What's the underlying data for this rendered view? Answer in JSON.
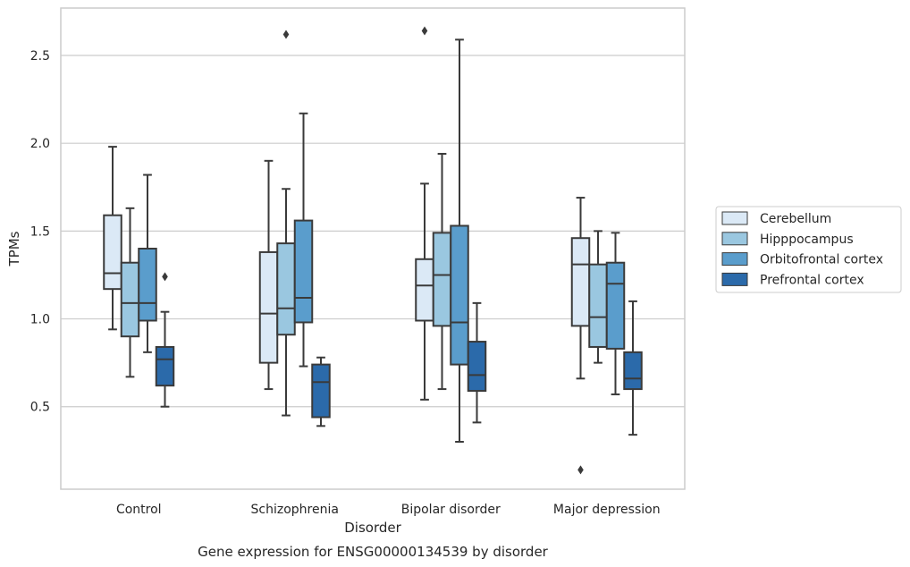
{
  "chart_data": {
    "type": "box",
    "title": "Gene expression for ENSG00000134539 by disorder",
    "xlabel": "Disorder",
    "ylabel": "TPMs",
    "categories": [
      "Control",
      "Schizophrenia",
      "Bipolar disorder",
      "Major depression"
    ],
    "ylim": [
      0.03,
      2.77
    ],
    "yticks": [
      0.5,
      1.0,
      1.5,
      2.0,
      2.5
    ],
    "ytick_labels": [
      "0.5",
      "1.0",
      "1.5",
      "2.0",
      "2.5"
    ],
    "grid": "horizontal",
    "legend_position": "right",
    "series": [
      {
        "name": "Cerebellum",
        "color": "#dbe9f6",
        "boxes": [
          {
            "category": "Control",
            "whislo": 0.94,
            "q1": 1.17,
            "med": 1.26,
            "q3": 1.59,
            "whishi": 1.98,
            "fliers": []
          },
          {
            "category": "Schizophrenia",
            "whislo": 0.6,
            "q1": 0.75,
            "med": 1.03,
            "q3": 1.38,
            "whishi": 1.9,
            "fliers": []
          },
          {
            "category": "Bipolar disorder",
            "whislo": 0.54,
            "q1": 0.99,
            "med": 1.19,
            "q3": 1.34,
            "whishi": 1.77,
            "fliers": [
              2.64
            ]
          },
          {
            "category": "Major depression",
            "whislo": 0.66,
            "q1": 0.96,
            "med": 1.31,
            "q3": 1.46,
            "whishi": 1.69,
            "fliers": [
              0.14
            ]
          }
        ]
      },
      {
        "name": "Hipppocampus",
        "color": "#9ac7e0",
        "boxes": [
          {
            "category": "Control",
            "whislo": 0.67,
            "q1": 0.9,
            "med": 1.09,
            "q3": 1.32,
            "whishi": 1.63,
            "fliers": []
          },
          {
            "category": "Schizophrenia",
            "whislo": 0.45,
            "q1": 0.91,
            "med": 1.06,
            "q3": 1.43,
            "whishi": 1.74,
            "fliers": [
              2.62
            ]
          },
          {
            "category": "Bipolar disorder",
            "whislo": 0.6,
            "q1": 0.96,
            "med": 1.25,
            "q3": 1.49,
            "whishi": 1.94,
            "fliers": []
          },
          {
            "category": "Major depression",
            "whislo": 0.75,
            "q1": 0.84,
            "med": 1.01,
            "q3": 1.31,
            "whishi": 1.5,
            "fliers": []
          }
        ]
      },
      {
        "name": "Orbitofrontal cortex",
        "color": "#5a9dcc",
        "boxes": [
          {
            "category": "Control",
            "whislo": 0.81,
            "q1": 0.99,
            "med": 1.09,
            "q3": 1.4,
            "whishi": 1.82,
            "fliers": []
          },
          {
            "category": "Schizophrenia",
            "whislo": 0.73,
            "q1": 0.98,
            "med": 1.12,
            "q3": 1.56,
            "whishi": 2.17,
            "fliers": []
          },
          {
            "category": "Bipolar disorder",
            "whislo": 0.3,
            "q1": 0.74,
            "med": 0.98,
            "q3": 1.53,
            "whishi": 2.59,
            "fliers": []
          },
          {
            "category": "Major depression",
            "whislo": 0.57,
            "q1": 0.83,
            "med": 1.2,
            "q3": 1.32,
            "whishi": 1.49,
            "fliers": []
          }
        ]
      },
      {
        "name": "Prefrontal cortex",
        "color": "#2b6aaa",
        "boxes": [
          {
            "category": "Control",
            "whislo": 0.5,
            "q1": 0.62,
            "med": 0.77,
            "q3": 0.84,
            "whishi": 1.04,
            "fliers": [
              1.24
            ]
          },
          {
            "category": "Schizophrenia",
            "whislo": 0.39,
            "q1": 0.44,
            "med": 0.64,
            "q3": 0.74,
            "whishi": 0.78,
            "fliers": []
          },
          {
            "category": "Bipolar disorder",
            "whislo": 0.41,
            "q1": 0.59,
            "med": 0.68,
            "q3": 0.87,
            "whishi": 1.09,
            "fliers": []
          },
          {
            "category": "Major depression",
            "whislo": 0.34,
            "q1": 0.6,
            "med": 0.66,
            "q3": 0.81,
            "whishi": 1.1,
            "fliers": []
          }
        ]
      }
    ]
  }
}
